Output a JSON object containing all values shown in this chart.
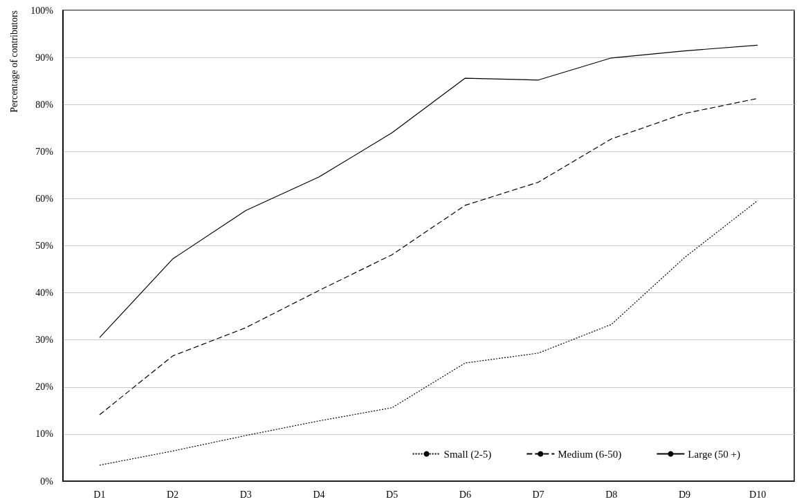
{
  "chart_data": {
    "type": "line",
    "ylabel": "Percentage of contributors",
    "categories": [
      "D1",
      "D2",
      "D3",
      "D4",
      "D5",
      "D6",
      "D7",
      "D8",
      "D9",
      "D10"
    ],
    "series": [
      {
        "name": "Small (2-5)",
        "color": "#000000",
        "line_style": "dotted",
        "values": [
          3.4,
          6.4,
          9.7,
          12.8,
          15.6,
          25.1,
          27.2,
          33.3,
          47.5,
          59.6
        ]
      },
      {
        "name": "Medium (6-50)",
        "color": "#000000",
        "line_style": "dashed",
        "values": [
          14.1,
          26.6,
          32.6,
          40.5,
          48.1,
          58.6,
          63.5,
          72.7,
          78.1,
          81.3
        ]
      },
      {
        "name": "Large (50 +)",
        "color": "#000000",
        "line_style": "solid",
        "values": [
          30.5,
          47.2,
          57.5,
          64.6,
          74.0,
          85.6,
          85.2,
          89.9,
          91.4,
          92.6
        ]
      }
    ],
    "ylim": [
      0,
      100
    ],
    "yticks": [
      {
        "value": 0,
        "label": "0%"
      },
      {
        "value": 10,
        "label": "10%"
      },
      {
        "value": 20,
        "label": "20%"
      },
      {
        "value": 30,
        "label": "30%"
      },
      {
        "value": 40,
        "label": "40%"
      },
      {
        "value": 50,
        "label": "50%"
      },
      {
        "value": 60,
        "label": "60%"
      },
      {
        "value": 70,
        "label": "70%"
      },
      {
        "value": 80,
        "label": "80%"
      },
      {
        "value": 90,
        "label": "90%"
      },
      {
        "value": 100,
        "label": "100%"
      }
    ],
    "grid": "y",
    "legend": "bottom right",
    "marker": "none"
  }
}
